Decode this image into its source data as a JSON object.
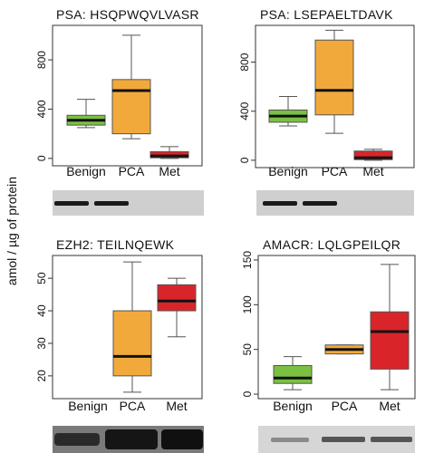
{
  "figure": {
    "ylabel": "amol / µg of protein"
  },
  "colors": {
    "Benign": "#7ac142",
    "PCA": "#f2a93b",
    "Met": "#d9252a",
    "median": "#111111",
    "whisker": "#555555",
    "blot_bg": "#cfcfcf",
    "band": "#1a1a1a"
  },
  "chart_data": [
    {
      "type": "box",
      "title": "PSA:  HSQPWQVLVASR",
      "categories": [
        "Benign",
        "PCA",
        "Met"
      ],
      "ylim": [
        -60,
        1080
      ],
      "yticks": [
        0,
        400,
        800
      ],
      "series": [
        {
          "category": "Benign",
          "min": 250,
          "q1": 270,
          "median": 310,
          "q3": 350,
          "max": 480
        },
        {
          "category": "PCA",
          "min": 160,
          "q1": 200,
          "median": 550,
          "q3": 640,
          "max": 1000
        },
        {
          "category": "Met",
          "min": 0,
          "q1": 5,
          "median": 20,
          "q3": 55,
          "max": 95
        }
      ],
      "blot": {
        "bands": [
          "Benign",
          "PCA"
        ]
      }
    },
    {
      "type": "box",
      "title": "PSA:  LSEPAELTDAVK",
      "categories": [
        "Benign",
        "PCA",
        "Met"
      ],
      "ylim": [
        -60,
        1100
      ],
      "yticks": [
        0,
        400,
        800
      ],
      "series": [
        {
          "category": "Benign",
          "min": 280,
          "q1": 310,
          "median": 360,
          "q3": 410,
          "max": 520
        },
        {
          "category": "PCA",
          "min": 220,
          "q1": 370,
          "median": 570,
          "q3": 980,
          "max": 1060
        },
        {
          "category": "Met",
          "min": 0,
          "q1": 5,
          "median": 20,
          "q3": 75,
          "max": 90
        }
      ],
      "blot": {
        "bands": [
          "Benign",
          "PCA"
        ]
      }
    },
    {
      "type": "box",
      "title": "EZH2:  TEILNQEWK",
      "categories": [
        "Benign",
        "PCA",
        "Met"
      ],
      "ylim": [
        13,
        57
      ],
      "yticks": [
        20,
        30,
        40,
        50
      ],
      "series": [
        {
          "category": "PCA",
          "min": 15,
          "q1": 20,
          "median": 26,
          "q3": 40,
          "max": 55
        },
        {
          "category": "Met",
          "min": 32,
          "q1": 40,
          "median": 43,
          "q3": 48,
          "max": 50
        }
      ],
      "blot": {
        "bands": [
          "Benign",
          "PCA",
          "Met"
        ]
      }
    },
    {
      "type": "box",
      "title": "AMACR:  LQLGPEILQR",
      "categories": [
        "Benign",
        "PCA",
        "Met"
      ],
      "ylim": [
        -5,
        155
      ],
      "yticks": [
        0,
        50,
        100,
        150
      ],
      "series": [
        {
          "category": "Benign",
          "min": 5,
          "q1": 12,
          "median": 18,
          "q3": 32,
          "max": 42
        },
        {
          "category": "PCA",
          "min": 45,
          "q1": 45,
          "median": 50,
          "q3": 55,
          "max": 55
        },
        {
          "category": "Met",
          "min": 5,
          "q1": 28,
          "median": 70,
          "q3": 92,
          "max": 145
        }
      ],
      "blot": {
        "bands": [
          "Benign",
          "PCA",
          "Met"
        ]
      }
    }
  ]
}
